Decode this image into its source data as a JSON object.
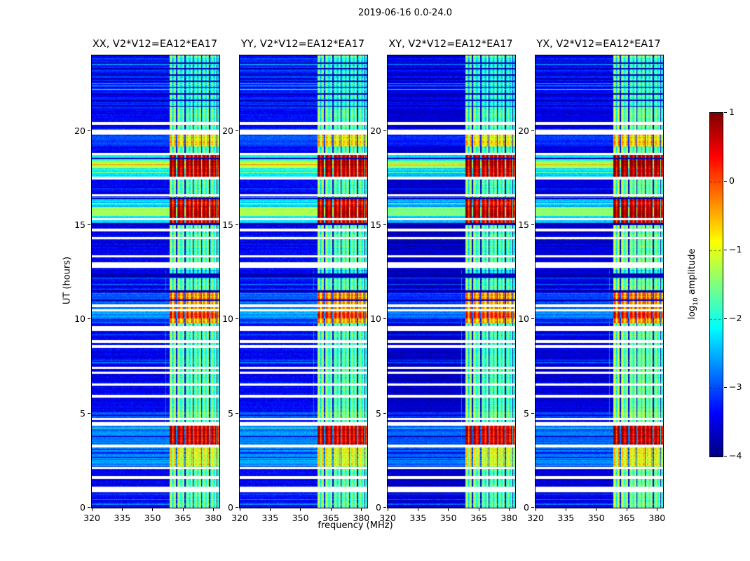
{
  "figure": {
    "title": "2019-06-16 0.0-24.0",
    "xlabel": "frequency (MHz)",
    "ylabel": "UT (hours)",
    "colorbar_label": {
      "pre": "log",
      "sub": "10",
      "post": " amplitude"
    }
  },
  "chart_data": {
    "type": "heatmap",
    "title": "2019-06-16 0.0-24.0",
    "colormap": "jet",
    "panels": [
      {
        "title": "XX, V2*V12=EA12*EA17",
        "bb_offset": 0,
        "rfi_offset": 0
      },
      {
        "title": "YY, V2*V12=EA12*EA17",
        "bb_offset": 0.05,
        "rfi_offset": 0
      },
      {
        "title": "XY, V2*V12=EA12*EA17",
        "bb_offset": -0.2,
        "rfi_offset": -0.05
      },
      {
        "title": "YX, V2*V12=EA12*EA17",
        "bb_offset": -0.1,
        "rfi_offset": 0.1
      }
    ],
    "x_axis": {
      "label": "frequency (MHz)",
      "range": [
        320,
        383
      ],
      "ticks": [
        320,
        335,
        350,
        365,
        380
      ],
      "unit": "MHz"
    },
    "y_axis": {
      "label": "UT (hours)",
      "range": [
        0,
        24
      ],
      "ticks": [
        0,
        5,
        10,
        15,
        20
      ],
      "unit": "hours"
    },
    "colorbar": {
      "label": "log10 amplitude",
      "range": [
        -4,
        1
      ],
      "tick_values": [
        1,
        0,
        -1,
        -2,
        -3,
        -4
      ],
      "ticks": [
        "1",
        "0",
        "−1",
        "−2",
        "−3",
        "−4"
      ]
    },
    "background_level": -3.45,
    "rfi_band": {
      "freq_start": 358.5,
      "level": -1.7
    },
    "comb": {
      "period_mhz": 2.05,
      "amp": 0.5,
      "dark_lines": [
        361.9,
        366.0,
        370.1,
        374.2,
        378.2,
        381.8
      ],
      "dark_width": 0.45
    },
    "narrow_line": {
      "freq": 356.5,
      "ut_range": [
        2.2,
        12.6
      ],
      "level": -2.8
    },
    "events": [
      {
        "ut": [
          2.2,
          3.22
        ],
        "bb": -2.7,
        "rfi": -1.05
      },
      {
        "ut": [
          3.32,
          4.4
        ],
        "bb": -2.75,
        "rfi": 0.6
      },
      {
        "ut": [
          4.78,
          5.05
        ],
        "bb": -3.05,
        "rfi": -1.45
      },
      {
        "ut": [
          9.8,
          11.42
        ],
        "bb": -2.95,
        "rfi": -0.4
      },
      {
        "ut": [
          10.05,
          10.42
        ],
        "bb": -2.6,
        "rfi": 0.1
      },
      {
        "ut": [
          12.15,
          12.6
        ],
        "bb": -3.55,
        "rfi": -2.3
      },
      {
        "ut": [
          15.0,
          16.5
        ],
        "bb": -2.35,
        "rfi": 0.5
      },
      {
        "ut": [
          15.45,
          15.97
        ],
        "bb": -1.45,
        "rfi": 0.75
      },
      {
        "ut": [
          17.55,
          18.72
        ],
        "bb": -2.15,
        "rfi": 0.68
      },
      {
        "ut": [
          18.02,
          18.42
        ],
        "bb": -1.3,
        "rfi": 0.85
      },
      {
        "ut": [
          19.15,
          19.85
        ],
        "bb": -3.0,
        "rfi": -0.75
      },
      {
        "ut": [
          21.1,
          23.85
        ],
        "bb": -3.25,
        "rfi": -1.95
      }
    ],
    "gaps": [
      {
        "ut": 0.95,
        "h": 0.3
      },
      {
        "ut": 1.6,
        "h": 0.15
      },
      {
        "ut": 2.1,
        "h": 0.12
      },
      {
        "ut": 3.27,
        "h": 0.14
      },
      {
        "ut": 4.45,
        "h": 0.16
      },
      {
        "ut": 4.72,
        "h": 0.12
      },
      {
        "ut": 5.9,
        "h": 0.15
      },
      {
        "ut": 6.52,
        "h": 0.12
      },
      {
        "ut": 7.15,
        "h": 0.12
      },
      {
        "ut": 7.42,
        "h": 0.12
      },
      {
        "ut": 8.55,
        "h": 0.15
      },
      {
        "ut": 8.82,
        "h": 0.12
      },
      {
        "ut": 9.5,
        "h": 0.28
      },
      {
        "ut": 10.48,
        "h": 0.12
      },
      {
        "ut": 10.72,
        "h": 0.12
      },
      {
        "ut": 12.88,
        "h": 0.3
      },
      {
        "ut": 13.35,
        "h": 0.12
      },
      {
        "ut": 14.32,
        "h": 0.12
      },
      {
        "ut": 14.72,
        "h": 0.15
      },
      {
        "ut": 15.32,
        "h": 0.12
      },
      {
        "ut": 16.58,
        "h": 0.12
      },
      {
        "ut": 17.5,
        "h": 0.16
      },
      {
        "ut": 18.78,
        "h": 0.12
      },
      {
        "ut": 19.93,
        "h": 0.28
      },
      {
        "ut": 20.38,
        "h": 0.15
      }
    ],
    "dark_rows": [
      {
        "ut": 11.0,
        "h": 0.08
      },
      {
        "ut": 11.48,
        "h": 0.1
      },
      {
        "ut": 12.3,
        "h": 0.22
      },
      {
        "ut": 15.05,
        "h": 0.08
      },
      {
        "ut": 16.42,
        "h": 0.06
      },
      {
        "ut": 18.52,
        "h": 0.07
      },
      {
        "ut": 21.3,
        "h": 0.06
      },
      {
        "ut": 21.62,
        "h": 0.06
      },
      {
        "ut": 21.95,
        "h": 0.06
      },
      {
        "ut": 22.3,
        "h": 0.06
      },
      {
        "ut": 22.62,
        "h": 0.06
      },
      {
        "ut": 22.95,
        "h": 0.06
      },
      {
        "ut": 23.3,
        "h": 0.06
      },
      {
        "ut": 23.6,
        "h": 0.06
      }
    ]
  }
}
